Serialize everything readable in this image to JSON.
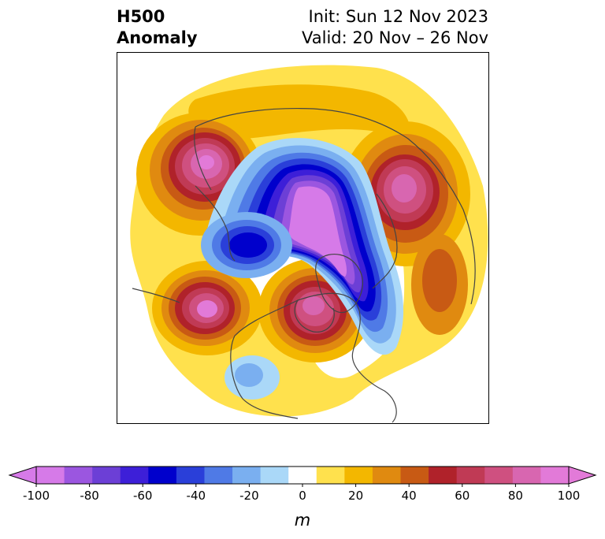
{
  "header": {
    "title_line1": "H500",
    "title_line2": "Anomaly",
    "init": "Init: Sun 12 Nov 2023",
    "valid": "Valid: 20 Nov – 26 Nov"
  },
  "colorbar": {
    "unit": "m",
    "ticks": [
      "-100",
      "-80",
      "-60",
      "-40",
      "-20",
      "0",
      "20",
      "40",
      "60",
      "80",
      "100"
    ],
    "colors": [
      "#d67ae8",
      "#9b56e0",
      "#6c3fd6",
      "#3d1fd8",
      "#0000cc",
      "#2a3fd9",
      "#4f7ae6",
      "#7aaff0",
      "#aad8f8",
      "#ffffff",
      "#ffe14d",
      "#f3b700",
      "#e08a10",
      "#c85a14",
      "#b0222a",
      "#c03a55",
      "#cf5080",
      "#d866b0",
      "#e27ad8"
    ],
    "min_color": "#d67ae8",
    "max_color": "#e27ad8"
  },
  "map": {
    "projection": "north-polar-stereographic",
    "features": {
      "positive_anomalies": [
        "North Pacific / Alaska",
        "Eastern Europe / Scandinavia",
        "Central Pacific",
        "Eastern North America / Hudson Bay",
        "Central Asia"
      ],
      "negative_anomalies": [
        "Arctic / Greenland",
        "Eastern Siberia",
        "Labrador Sea to North Atlantic",
        "Western United States"
      ]
    }
  }
}
